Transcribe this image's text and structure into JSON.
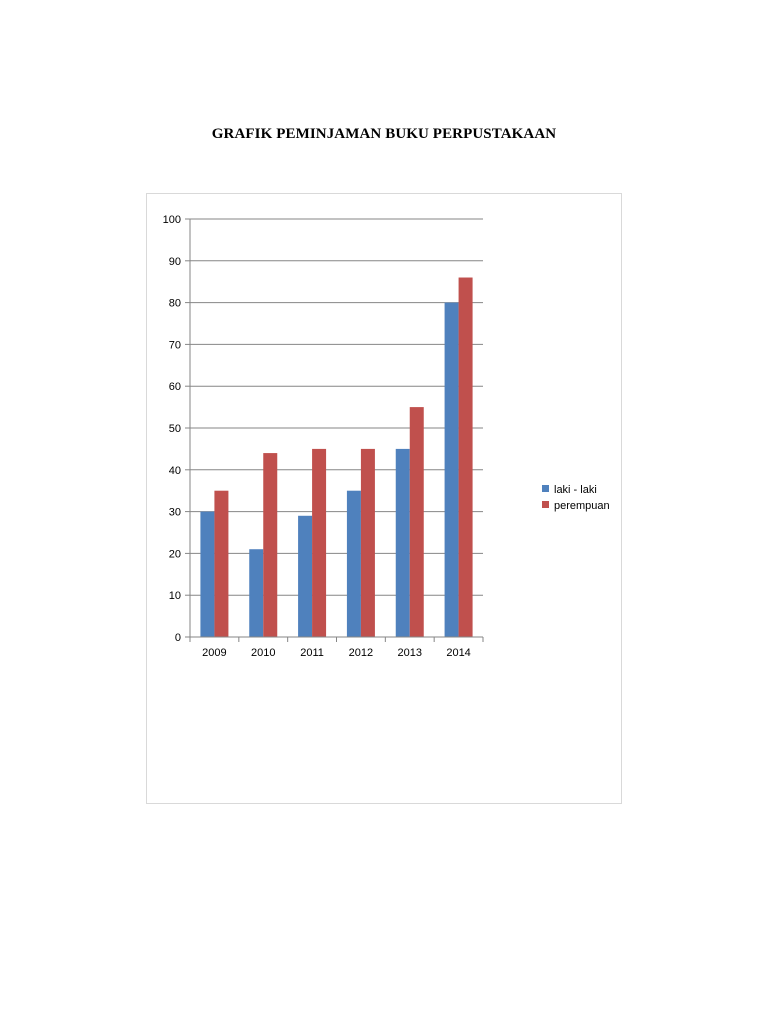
{
  "page": {
    "title": "GRAFIK PEMINJAMAN BUKU PERPUSTAKAAN"
  },
  "colors": {
    "laki": "#4f81bd",
    "perempuan": "#c0504d",
    "grid": "#868686",
    "border": "#d9d9d9"
  },
  "chart_data": {
    "type": "bar",
    "title": "GRAFIK PEMINJAMAN BUKU PERPUSTAKAAN",
    "xlabel": "",
    "ylabel": "",
    "categories": [
      "2009",
      "2010",
      "2011",
      "2012",
      "2013",
      "2014"
    ],
    "series": [
      {
        "name": "laki - laki",
        "values": [
          30,
          21,
          29,
          35,
          45,
          80
        ]
      },
      {
        "name": "perempuan",
        "values": [
          35,
          44,
          45,
          45,
          55,
          86
        ]
      }
    ],
    "ylim": [
      0,
      100
    ],
    "yticks": [
      0,
      10,
      20,
      30,
      40,
      50,
      60,
      70,
      80,
      90,
      100
    ],
    "grid": true,
    "legend": "right"
  }
}
